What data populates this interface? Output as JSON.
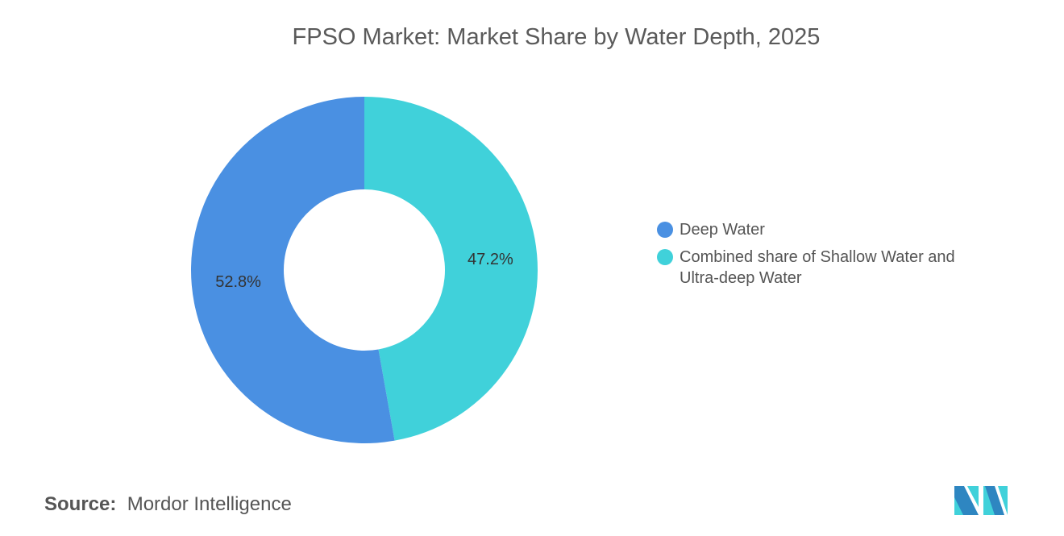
{
  "title": "FPSO Market: Market Share by Water Depth, 2025",
  "source_label": "Source:",
  "source_value": "Mordor Intelligence",
  "logo_text": "Mordor Intelligence",
  "chart_data": {
    "type": "pie",
    "donut": true,
    "title": "FPSO Market: Market Share by Water Depth, 2025",
    "legend_position": "right",
    "series": [
      {
        "name": "Combined share of Shallow Water and Ultra-deep Water",
        "value": 47.2,
        "label": "47.2%",
        "color": "#40D1DA"
      },
      {
        "name": "Deep Water",
        "value": 52.8,
        "label": "52.8%",
        "color": "#4A90E2"
      }
    ],
    "legend": [
      {
        "name": "Deep Water",
        "color": "#4A90E2"
      },
      {
        "name": "Combined share of Shallow Water and Ultra-deep Water",
        "color": "#40D1DA"
      }
    ]
  }
}
